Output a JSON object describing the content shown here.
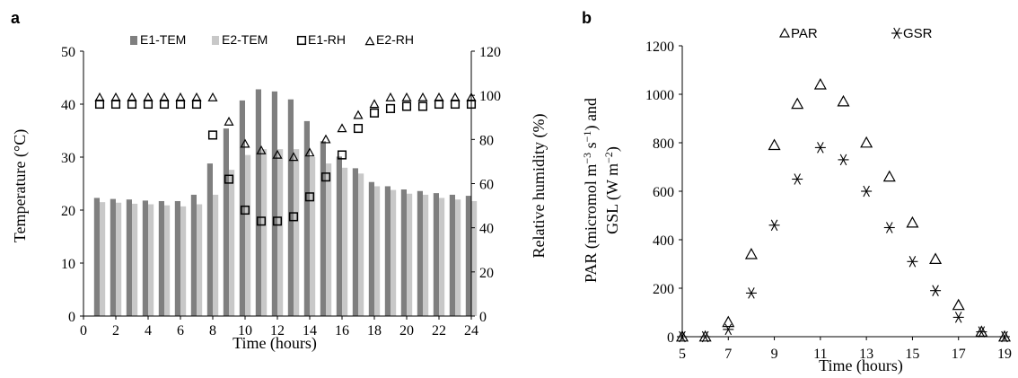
{
  "chart_data": [
    {
      "panel": "a",
      "type": "bar+scatter",
      "xlabel": "Time (hours)",
      "ylabel": "Temperature (°C)",
      "ylabel_right": "Relative humidity (%)",
      "xlim": [
        0,
        24
      ],
      "ylim": [
        0,
        50
      ],
      "ylim_right": [
        0,
        120
      ],
      "x_ticks": [
        "0",
        "2",
        "4",
        "6",
        "8",
        "10",
        "12",
        "14",
        "16",
        "18",
        "20",
        "22",
        "24"
      ],
      "y_ticks": [
        "0",
        "10",
        "20",
        "30",
        "40",
        "50"
      ],
      "y_ticks_right": [
        "0",
        "20",
        "40",
        "60",
        "80",
        "100",
        "120"
      ],
      "legend_position": "top",
      "categories": [
        1,
        2,
        3,
        4,
        5,
        6,
        7,
        8,
        9,
        10,
        11,
        12,
        13,
        14,
        15,
        16,
        17,
        18,
        19,
        20,
        21,
        22,
        23,
        24
      ],
      "series": [
        {
          "name": "E1-TEM",
          "kind": "bar",
          "axis": "left",
          "color": "#7f7f7f",
          "values": [
            22.3,
            22.1,
            22.0,
            21.8,
            21.7,
            21.7,
            22.9,
            28.8,
            35.4,
            40.7,
            42.8,
            42.4,
            40.9,
            36.8,
            33.0,
            30.1,
            27.9,
            25.3,
            24.5,
            23.9,
            23.6,
            23.2,
            22.9,
            22.7
          ]
        },
        {
          "name": "E2-TEM",
          "kind": "bar",
          "axis": "left",
          "color": "#c8c8c8",
          "values": [
            21.5,
            21.4,
            21.2,
            21.1,
            20.9,
            20.7,
            21.1,
            22.9,
            27.6,
            30.4,
            31.5,
            31.5,
            31.5,
            30.0,
            28.8,
            28.0,
            26.9,
            24.5,
            23.8,
            23.1,
            22.9,
            22.3,
            22.0,
            21.7
          ]
        },
        {
          "name": "E1-RH",
          "kind": "marker",
          "marker": "square",
          "axis": "right",
          "values": [
            96,
            96,
            96,
            96,
            96,
            96,
            96,
            82,
            62,
            48,
            43,
            43,
            45,
            54,
            63,
            73,
            85,
            92,
            94,
            95,
            95,
            96,
            96,
            96
          ]
        },
        {
          "name": "E2-RH",
          "kind": "marker",
          "marker": "triangle",
          "axis": "right",
          "values": [
            99,
            99,
            99,
            99,
            99,
            99,
            99,
            99,
            88,
            78,
            75,
            73,
            72,
            74,
            80,
            85,
            91,
            96,
            99,
            99,
            99,
            99,
            99,
            99
          ]
        }
      ]
    },
    {
      "panel": "b",
      "type": "scatter",
      "xlabel": "Time (hours)",
      "ylabel_lines": [
        "PAR (micromol m",
        "−3",
        " s",
        "−1",
        ") and",
        "GSL (W m",
        "−2",
        ")"
      ],
      "xlim": [
        5,
        19
      ],
      "ylim": [
        0,
        1200
      ],
      "x_ticks": [
        "5",
        "7",
        "9",
        "11",
        "13",
        "15",
        "17",
        "19"
      ],
      "y_ticks": [
        "0",
        "200",
        "400",
        "600",
        "800",
        "1000",
        "1200"
      ],
      "legend_position": "top",
      "x": [
        5,
        6,
        7,
        8,
        9,
        10,
        11,
        12,
        13,
        14,
        15,
        16,
        17,
        18,
        19
      ],
      "series": [
        {
          "name": "PAR",
          "marker": "triangle",
          "values": [
            0,
            0,
            60,
            340,
            790,
            960,
            1040,
            970,
            800,
            660,
            470,
            320,
            130,
            20,
            0
          ]
        },
        {
          "name": "GSR",
          "marker": "asterisk",
          "values": [
            0,
            0,
            30,
            180,
            460,
            650,
            780,
            730,
            600,
            450,
            310,
            190,
            80,
            20,
            0
          ]
        }
      ]
    }
  ]
}
